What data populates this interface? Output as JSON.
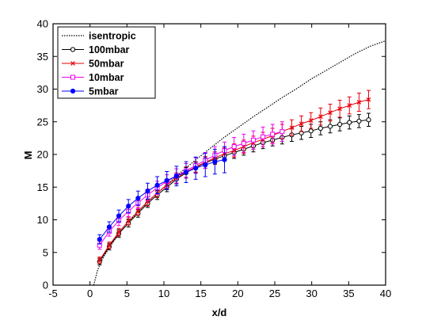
{
  "chart_data": {
    "type": "scatter",
    "xlabel": "x/d",
    "ylabel": "M",
    "xlim": [
      -5,
      40
    ],
    "ylim": [
      0,
      40
    ],
    "xticks": [
      -5,
      0,
      5,
      10,
      15,
      20,
      25,
      30,
      35,
      40
    ],
    "yticks": [
      0,
      5,
      10,
      15,
      20,
      25,
      30,
      35,
      40
    ],
    "grid": false,
    "legend_position": "top-left",
    "series": [
      {
        "name": "isentropic",
        "color": "#000000",
        "style": "dotted-line",
        "marker": "none",
        "x": [
          0.5,
          0.8,
          1,
          1.5,
          2,
          3,
          4,
          5,
          6,
          7,
          8,
          9,
          10,
          12,
          14,
          16,
          18,
          20,
          22,
          24,
          26,
          28,
          30,
          32,
          34,
          36,
          38,
          40
        ],
        "y": [
          0,
          1.3,
          2.2,
          3.6,
          4.6,
          6.4,
          8.0,
          9.3,
          10.6,
          11.8,
          12.9,
          14.0,
          15.0,
          17.0,
          18.9,
          20.7,
          22.5,
          24.1,
          25.7,
          27.2,
          28.7,
          30.1,
          31.6,
          32.9,
          34.2,
          35.5,
          36.6,
          37.4
        ]
      },
      {
        "name": "100mbar",
        "color": "#000000",
        "marker": "circle",
        "x": [
          1.3,
          2.6,
          3.9,
          5.2,
          6.5,
          7.8,
          9.1,
          10.4,
          11.7,
          13.0,
          14.3,
          15.6,
          16.9,
          18.2,
          19.5,
          20.8,
          22.1,
          23.4,
          24.7,
          26.0,
          27.3,
          28.6,
          29.9,
          31.2,
          32.5,
          33.8,
          35.1,
          36.4,
          37.7
        ],
        "y": [
          3.6,
          5.9,
          7.9,
          9.5,
          11.0,
          12.5,
          13.8,
          15.0,
          16.2,
          17.2,
          18.0,
          18.7,
          19.3,
          19.8,
          20.3,
          20.8,
          21.3,
          21.8,
          22.2,
          22.6,
          23.0,
          23.3,
          23.6,
          24.0,
          24.3,
          24.6,
          24.9,
          25.1,
          25.3
        ],
        "error": [
          0.5,
          0.5,
          0.6,
          0.6,
          0.6,
          0.6,
          0.7,
          0.7,
          0.7,
          0.8,
          0.8,
          0.8,
          0.8,
          0.8,
          0.9,
          0.9,
          0.9,
          0.9,
          0.9,
          1.0,
          1.0,
          1.0,
          1.0,
          1.0,
          1.0,
          1.0,
          1.0,
          1.0,
          1.0
        ]
      },
      {
        "name": "50mbar",
        "color": "#e8000a",
        "marker": "x",
        "x": [
          1.3,
          2.6,
          3.9,
          5.2,
          6.5,
          7.8,
          9.1,
          10.4,
          11.7,
          13.0,
          14.3,
          15.6,
          16.9,
          18.2,
          19.5,
          20.8,
          22.1,
          23.4,
          24.7,
          26.0,
          27.3,
          28.6,
          29.9,
          31.2,
          32.5,
          33.8,
          35.1,
          36.4,
          37.7
        ],
        "y": [
          3.8,
          6.1,
          8.1,
          9.8,
          11.3,
          12.8,
          14.1,
          15.3,
          16.4,
          17.3,
          18.1,
          18.8,
          19.5,
          20.1,
          20.6,
          21.2,
          21.8,
          22.3,
          22.9,
          23.5,
          24.1,
          24.7,
          25.2,
          25.8,
          26.4,
          27.0,
          27.5,
          28.0,
          28.4
        ],
        "error": [
          0.5,
          0.5,
          0.6,
          0.6,
          0.6,
          0.7,
          0.7,
          0.7,
          0.8,
          0.8,
          0.8,
          0.9,
          0.9,
          0.9,
          1.0,
          1.0,
          1.0,
          1.1,
          1.1,
          1.1,
          1.2,
          1.2,
          1.2,
          1.3,
          1.3,
          1.3,
          1.3,
          1.4,
          1.4
        ]
      },
      {
        "name": "10mbar",
        "color": "#ee00ee",
        "marker": "square",
        "x": [
          1.3,
          2.6,
          3.9,
          5.2,
          6.5,
          7.8,
          9.1,
          10.4,
          11.7,
          13.0,
          14.3,
          15.6,
          16.9,
          18.2,
          19.5,
          20.8,
          22.1,
          23.4,
          24.7,
          26.0
        ],
        "y": [
          6.1,
          8.2,
          9.9,
          11.3,
          12.6,
          13.8,
          14.9,
          15.9,
          16.7,
          17.5,
          18.3,
          19.1,
          19.9,
          20.6,
          21.2,
          21.7,
          22.2,
          22.7,
          23.1,
          23.5
        ],
        "error": [
          0.6,
          0.7,
          0.8,
          0.8,
          0.9,
          0.9,
          1.0,
          1.0,
          1.1,
          1.1,
          1.2,
          1.2,
          1.3,
          1.3,
          1.4,
          1.4,
          1.4,
          1.5,
          1.5,
          1.5
        ]
      },
      {
        "name": "5mbar",
        "color": "#0000ff",
        "marker": "filled-circle",
        "x": [
          1.3,
          2.6,
          3.9,
          5.2,
          6.5,
          7.8,
          9.1,
          10.4,
          11.7,
          13.0,
          14.3,
          15.6,
          16.9,
          18.2
        ],
        "y": [
          7.0,
          8.9,
          10.6,
          12.1,
          13.3,
          14.4,
          15.3,
          16.0,
          16.7,
          17.3,
          17.9,
          18.4,
          18.9,
          19.2
        ],
        "error": [
          0.7,
          0.8,
          0.9,
          1.0,
          1.1,
          1.2,
          1.3,
          1.4,
          1.5,
          1.6,
          1.7,
          1.8,
          1.9,
          2.0
        ]
      }
    ]
  }
}
